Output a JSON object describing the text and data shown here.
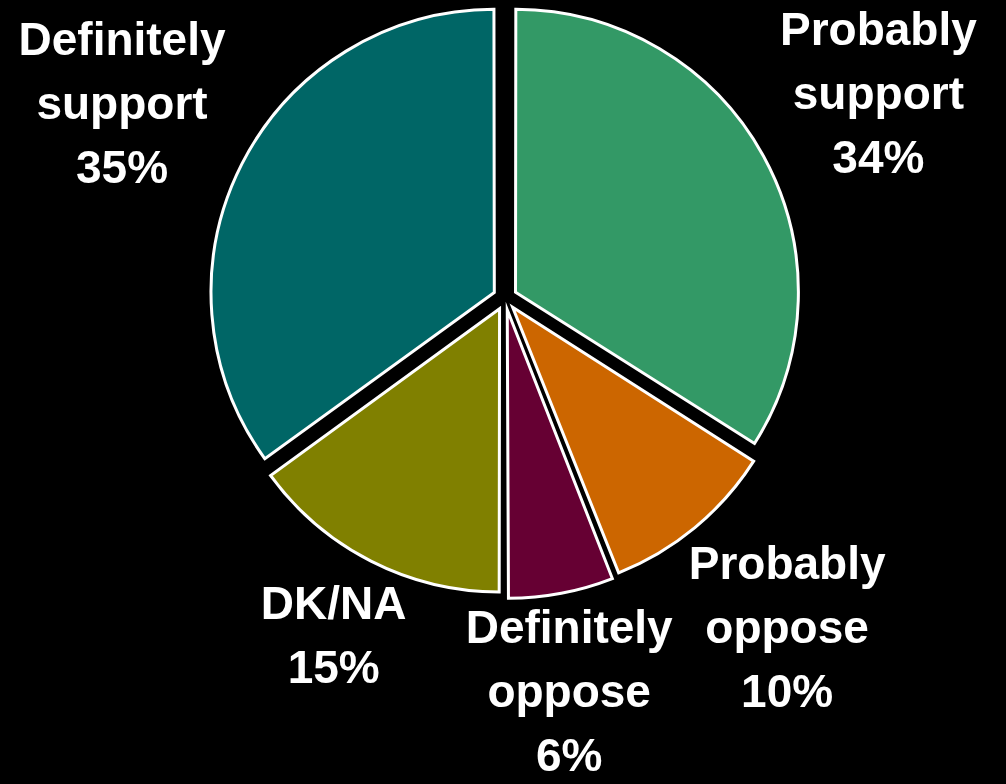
{
  "chart_data": {
    "type": "pie",
    "categories": [
      "Probably support",
      "Probably oppose",
      "Definitely oppose",
      "DK/NA",
      "Definitely support"
    ],
    "values": [
      34,
      10,
      6,
      15,
      35
    ],
    "value_labels": [
      "34%",
      "10%",
      "6%",
      "15%",
      "35%"
    ],
    "colors": [
      "#339966",
      "#cc6600",
      "#660033",
      "#808000",
      "#006666"
    ]
  }
}
